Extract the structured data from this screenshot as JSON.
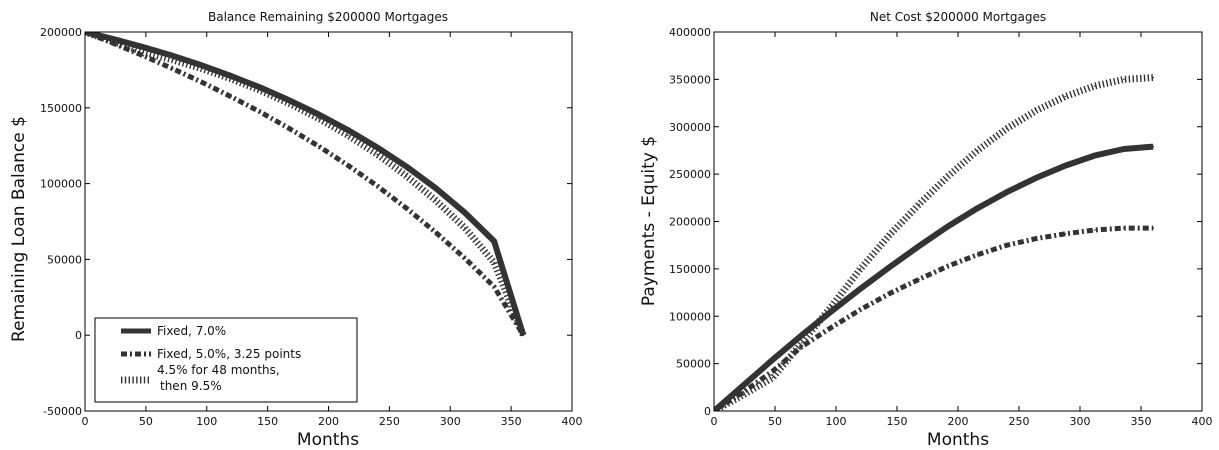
{
  "chart_data": [
    {
      "type": "line",
      "title": "Balance Remaining $200000 Mortgages",
      "xlabel": "Months",
      "ylabel": "Remaining Loan Balance $",
      "xlim": [
        0,
        400
      ],
      "ylim": [
        -50000,
        200000
      ],
      "xticks": [
        "0",
        "50",
        "100",
        "150",
        "200",
        "250",
        "300",
        "350",
        "400"
      ],
      "yticks": [
        "-50000",
        "0",
        "50000",
        "100000",
        "150000",
        "200000"
      ],
      "grid": false,
      "legend": "lower-left",
      "x": [
        0,
        24,
        48,
        72,
        96,
        120,
        144,
        168,
        192,
        216,
        240,
        264,
        288,
        312,
        336,
        360
      ],
      "series": [
        {
          "name": "Fixed, 7.0%",
          "style": "solid",
          "values": [
            200000,
            195200,
            190000,
            184300,
            178000,
            171000,
            163400,
            154900,
            145600,
            135300,
            123900,
            111200,
            97000,
            80800,
            62000,
            0
          ]
        },
        {
          "name": "Fixed, 5.0%, 3.25 points",
          "style": "dashdot",
          "values": [
            200000,
            192300,
            184300,
            175800,
            166900,
            157300,
            147200,
            136300,
            124600,
            112000,
            98500,
            83800,
            67900,
            50700,
            32000,
            0
          ]
        },
        {
          "name": "4.5% for 48 months, then 9.5%",
          "style": "dotted",
          "values": [
            200000,
            193500,
            186600,
            181600,
            175800,
            169100,
            161500,
            152800,
            142900,
            131800,
            119300,
            105000,
            89000,
            70800,
            48000,
            0
          ]
        }
      ]
    },
    {
      "type": "line",
      "title": "Net Cost $200000 Mortgages",
      "xlabel": "Months",
      "ylabel": "Payments - Equity $",
      "xlim": [
        0,
        400
      ],
      "ylim": [
        0,
        400000
      ],
      "xticks": [
        "0",
        "50",
        "100",
        "150",
        "200",
        "250",
        "300",
        "350",
        "400"
      ],
      "yticks": [
        "0",
        "50000",
        "100000",
        "150000",
        "200000",
        "250000",
        "300000",
        "350000",
        "400000"
      ],
      "grid": false,
      "x": [
        0,
        24,
        48,
        72,
        96,
        120,
        144,
        168,
        192,
        216,
        240,
        264,
        288,
        312,
        336,
        360
      ],
      "series": [
        {
          "style": "solid",
          "values": [
            0,
            27000,
            54000,
            80000,
            105000,
            129000,
            152000,
            174000,
            195000,
            214000,
            231000,
            246000,
            259000,
            269500,
            276500,
            279000
          ]
        },
        {
          "style": "dashdot",
          "values": [
            0,
            20000,
            42000,
            68000,
            88000,
            107000,
            124000,
            139000,
            153000,
            165000,
            175000,
            182000,
            187000,
            191000,
            193000,
            193000
          ]
        },
        {
          "style": "dotted",
          "values": [
            0,
            17000,
            35000,
            72000,
            110000,
            150000,
            186000,
            218000,
            248000,
            275000,
            298000,
            317000,
            332000,
            343000,
            350000,
            352000
          ]
        }
      ]
    }
  ]
}
